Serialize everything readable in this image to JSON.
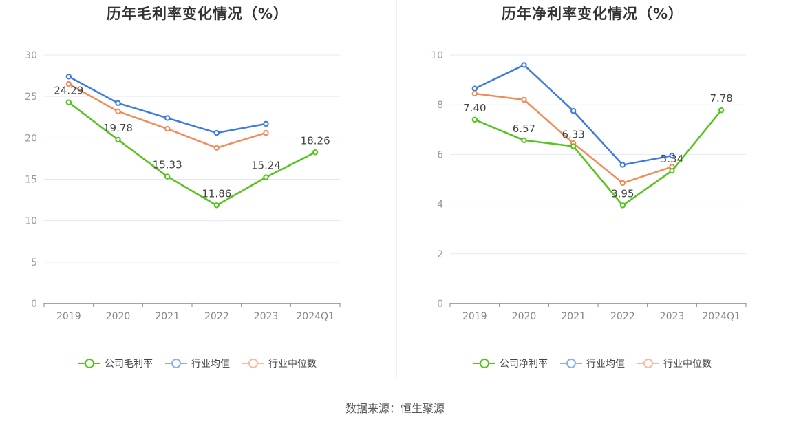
{
  "source": "数据来源：恒生聚源",
  "chart_data": [
    {
      "type": "line",
      "title": "历年毛利率变化情况（%）",
      "categories": [
        "2019",
        "2020",
        "2021",
        "2022",
        "2023",
        "2024Q1"
      ],
      "yticks": [
        "0",
        "5",
        "10",
        "15",
        "20",
        "25",
        "30"
      ],
      "ylim": [
        0,
        30
      ],
      "grid": true,
      "legend_position": "bottom",
      "series": [
        {
          "name": "公司毛利率",
          "color": "#52c41a",
          "labeled": true,
          "values": [
            24.29,
            19.78,
            15.33,
            11.86,
            15.24,
            18.26
          ],
          "labels": [
            "24.29",
            "19.78",
            "15.33",
            "11.86",
            "15.24",
            "18.26"
          ]
        },
        {
          "name": "行业均值",
          "color": "#3d7be0",
          "labeled": false,
          "values": [
            27.4,
            24.2,
            22.4,
            20.6,
            21.7,
            null
          ]
        },
        {
          "name": "行业中位数",
          "color": "#f08c5a",
          "labeled": false,
          "values": [
            26.5,
            23.2,
            21.1,
            18.8,
            20.6,
            null
          ]
        }
      ]
    },
    {
      "type": "line",
      "title": "历年净利率变化情况（%）",
      "categories": [
        "2019",
        "2020",
        "2021",
        "2022",
        "2023",
        "2024Q1"
      ],
      "yticks": [
        "0",
        "2",
        "4",
        "6",
        "8",
        "10"
      ],
      "ylim": [
        0,
        10
      ],
      "grid": true,
      "legend_position": "bottom",
      "series": [
        {
          "name": "公司净利率",
          "color": "#52c41a",
          "labeled": true,
          "values": [
            7.4,
            6.57,
            6.33,
            3.95,
            5.34,
            7.78
          ],
          "labels": [
            "7.40",
            "6.57",
            "6.33",
            "3.95",
            "5.34",
            "7.78"
          ]
        },
        {
          "name": "行业均值",
          "color": "#3d7be0",
          "labeled": false,
          "values": [
            8.65,
            9.6,
            7.75,
            5.58,
            5.95,
            null
          ]
        },
        {
          "name": "行业中位数",
          "color": "#f08c5a",
          "labeled": false,
          "values": [
            8.45,
            8.2,
            6.45,
            4.85,
            5.5,
            null
          ]
        }
      ]
    }
  ]
}
